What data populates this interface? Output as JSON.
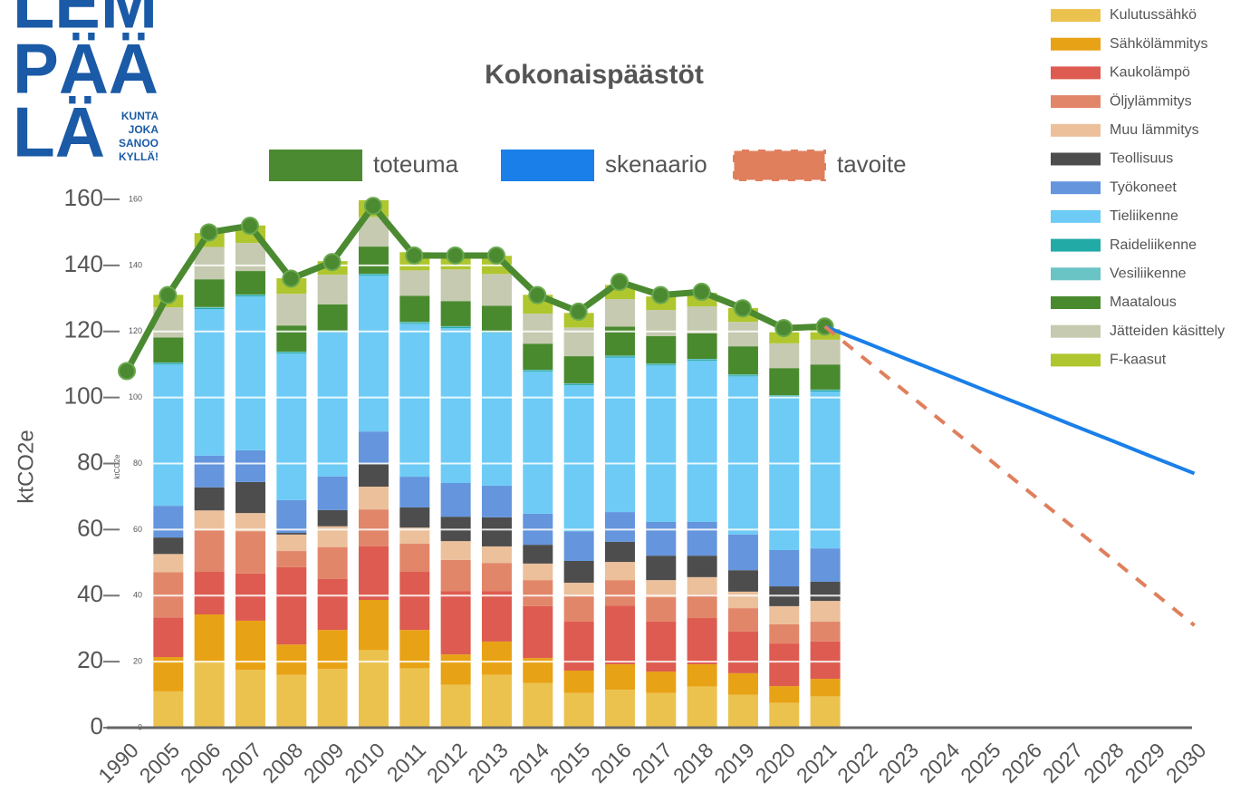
{
  "logo": {
    "words": [
      "LEM",
      "PÄÄ",
      "LÄ"
    ],
    "tagline": [
      "KUNTA",
      "JOKA",
      "SANOO",
      "KYLLÄ!"
    ]
  },
  "chart_data": {
    "type": "bar",
    "stacked": true,
    "title": "Kokonaispäästöt",
    "ylabel": "ktCO2e",
    "categories": [
      "1990",
      "2005",
      "2006",
      "2007",
      "2008",
      "2009",
      "2010",
      "2011",
      "2012",
      "2013",
      "2014",
      "2015",
      "2016",
      "2017",
      "2018",
      "2019",
      "2020",
      "2021",
      "2022",
      "2023",
      "2024",
      "2025",
      "2026",
      "2027",
      "2028",
      "2029",
      "2030"
    ],
    "ylim": [
      0,
      160
    ],
    "yticks": [
      0,
      20,
      40,
      60,
      80,
      100,
      120,
      140,
      160
    ],
    "grid": true,
    "series": [
      {
        "name": "Kulutussähkö",
        "type": "bar",
        "color": "#ecc24f",
        "values": [
          null,
          11,
          20,
          17.5,
          16,
          17.8,
          23.5,
          18,
          13,
          16,
          13.5,
          10.5,
          11.5,
          10.5,
          12.5,
          10,
          7.5,
          9.5,
          null,
          null,
          null,
          null,
          null,
          null,
          null,
          null,
          null
        ]
      },
      {
        "name": "Sähkölämmitys",
        "type": "bar",
        "color": "#e8a215",
        "values": [
          null,
          10.4,
          14.3,
          14.9,
          9.2,
          11.8,
          15.2,
          11.6,
          9.2,
          10.1,
          7.6,
          6.8,
          7.7,
          6.5,
          6.7,
          6.5,
          5.1,
          5.3,
          null,
          null,
          null,
          null,
          null,
          null,
          null,
          null,
          null
        ]
      },
      {
        "name": "Kaukolämpö",
        "type": "bar",
        "color": "#dd5b50",
        "values": [
          null,
          12,
          12.9,
          14.3,
          23.4,
          15.5,
          16.2,
          17.6,
          19.2,
          15.3,
          15.7,
          14.8,
          17.8,
          15.1,
          14,
          12.6,
          12.9,
          11.3,
          null,
          null,
          null,
          null,
          null,
          null,
          null,
          null,
          null
        ]
      },
      {
        "name": "Öljylämmitys",
        "type": "bar",
        "color": "#e2866a",
        "values": [
          null,
          13.7,
          12.6,
          12.8,
          4.9,
          9.6,
          11.2,
          8.5,
          9.4,
          8.5,
          7.9,
          8,
          7.7,
          7.4,
          7.1,
          7.1,
          5.8,
          6,
          null,
          null,
          null,
          null,
          null,
          null,
          null,
          null,
          null
        ]
      },
      {
        "name": "Muu lämmitys",
        "type": "bar",
        "color": "#ebc09b",
        "values": [
          null,
          5.5,
          6,
          5.5,
          5,
          6.3,
          6.9,
          4.9,
          5.7,
          5,
          5,
          3.8,
          5.5,
          5.2,
          5.3,
          5,
          5.5,
          6.3,
          null,
          null,
          null,
          null,
          null,
          null,
          null,
          null,
          null
        ]
      },
      {
        "name": "Teollisuus",
        "type": "bar",
        "color": "#4d4d4d",
        "values": [
          null,
          5,
          7,
          9.4,
          0.5,
          4.9,
          6.9,
          6.1,
          7.4,
          8.8,
          5.7,
          6.6,
          6.1,
          7.4,
          6.5,
          6.5,
          6,
          5.8,
          null,
          null,
          null,
          null,
          null,
          null,
          null,
          null,
          null
        ]
      },
      {
        "name": "Työkoneet",
        "type": "bar",
        "color": "#6495dd",
        "values": [
          null,
          9.6,
          9.6,
          9.6,
          9.9,
          10.2,
          9.8,
          9.3,
          10.2,
          9.6,
          9.4,
          9,
          9,
          10.2,
          10.2,
          10.8,
          11,
          10.1,
          null,
          null,
          null,
          null,
          null,
          null,
          null,
          null,
          null
        ]
      },
      {
        "name": "Tieliikenne",
        "type": "bar",
        "color": "#6ecbf5",
        "values": [
          null,
          42.8,
          44.4,
          46.6,
          44.4,
          43.6,
          47.2,
          46.3,
          46.9,
          46.3,
          43,
          44.2,
          46.8,
          47.4,
          48.8,
          47.9,
          46.3,
          47.5,
          null,
          null,
          null,
          null,
          null,
          null,
          null,
          null,
          null
        ]
      },
      {
        "name": "Raideliikenne",
        "type": "bar",
        "color": "#22aaa7",
        "values": [
          null,
          0.3,
          0.3,
          0.3,
          0.3,
          0.3,
          0.3,
          0.3,
          0.3,
          0.3,
          0.3,
          0.3,
          0.3,
          0.3,
          0.3,
          0.3,
          0.3,
          0.3,
          null,
          null,
          null,
          null,
          null,
          null,
          null,
          null,
          null
        ]
      },
      {
        "name": "Vesiliikenne",
        "type": "bar",
        "color": "#6ac3c5",
        "values": [
          null,
          0.3,
          0.3,
          0.3,
          0.3,
          0.3,
          0.3,
          0.3,
          0.3,
          0.3,
          0.3,
          0.3,
          0.3,
          0.3,
          0.3,
          0.3,
          0.3,
          0.3,
          null,
          null,
          null,
          null,
          null,
          null,
          null,
          null,
          null
        ]
      },
      {
        "name": "Maatalous",
        "type": "bar",
        "color": "#4a8a2f",
        "values": [
          null,
          7.6,
          8.4,
          7.1,
          7.9,
          7.9,
          8.2,
          7.9,
          7.6,
          7.6,
          7.9,
          8.2,
          8.8,
          8.3,
          7.7,
          8.5,
          8.2,
          7.6,
          null,
          null,
          null,
          null,
          null,
          null,
          null,
          null,
          null
        ]
      },
      {
        "name": "Jätteiden käsittely",
        "type": "bar",
        "color": "#c5cab0",
        "values": [
          null,
          9.1,
          9.8,
          8.5,
          9.6,
          9,
          9,
          7.7,
          9.6,
          9.6,
          9.1,
          8.7,
          8.3,
          7.9,
          8.2,
          7.4,
          7.5,
          7.5,
          null,
          null,
          null,
          null,
          null,
          null,
          null,
          null,
          null
        ]
      },
      {
        "name": "F-kaasut",
        "type": "bar",
        "color": "#b0c62e",
        "values": [
          null,
          3.8,
          4.2,
          5.3,
          4.7,
          4.1,
          5.2,
          5.5,
          4.7,
          5.5,
          5.7,
          4.4,
          4.3,
          4.1,
          4.1,
          4.2,
          3.5,
          3.2,
          null,
          null,
          null,
          null,
          null,
          null,
          null,
          null,
          null
        ]
      },
      {
        "name": "toteuma",
        "type": "line",
        "color": "#4c8a31",
        "markers": true,
        "values": [
          108,
          131,
          150,
          152,
          136,
          141,
          158,
          143,
          143,
          143,
          131,
          126,
          135,
          131,
          132,
          127,
          121,
          121.5,
          null,
          null,
          null,
          null,
          null,
          null,
          null,
          null,
          null
        ]
      },
      {
        "name": "skenaario",
        "type": "line",
        "color": "#1a7fe8",
        "values": [
          null,
          null,
          null,
          null,
          null,
          null,
          null,
          null,
          null,
          null,
          null,
          null,
          null,
          null,
          null,
          null,
          null,
          121.5,
          116.6,
          111.6,
          106.7,
          101.7,
          96.8,
          91.8,
          86.9,
          81.9,
          77
        ]
      },
      {
        "name": "tavoite",
        "type": "line",
        "color": "#e07f5c",
        "dashed": true,
        "values": [
          null,
          null,
          null,
          null,
          null,
          null,
          null,
          null,
          null,
          null,
          null,
          null,
          null,
          null,
          null,
          null,
          null,
          121.5,
          111.4,
          101.4,
          91.3,
          81.3,
          71.2,
          61.2,
          51.1,
          41,
          31
        ]
      }
    ]
  }
}
